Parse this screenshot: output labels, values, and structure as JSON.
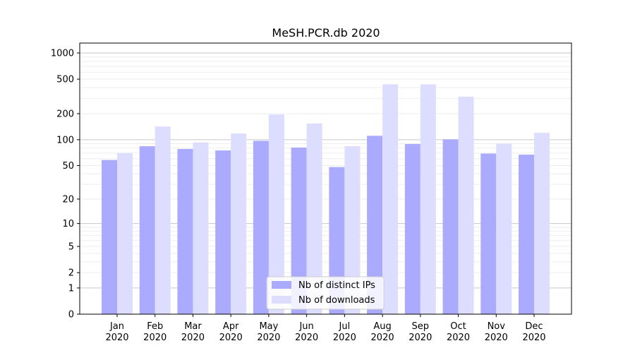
{
  "chart_data": {
    "type": "bar",
    "title": "MeSH.PCR.db 2020",
    "xlabel": "",
    "ylabel": "",
    "y_scale": "log1p",
    "ylim": [
      0,
      1300
    ],
    "grid": true,
    "legend_position": "bottom-center",
    "categories": [
      [
        "Jan",
        "2020"
      ],
      [
        "Feb",
        "2020"
      ],
      [
        "Mar",
        "2020"
      ],
      [
        "Apr",
        "2020"
      ],
      [
        "May",
        "2020"
      ],
      [
        "Jun",
        "2020"
      ],
      [
        "Jul",
        "2020"
      ],
      [
        "Aug",
        "2020"
      ],
      [
        "Sep",
        "2020"
      ],
      [
        "Oct",
        "2020"
      ],
      [
        "Nov",
        "2020"
      ],
      [
        "Dec",
        "2020"
      ]
    ],
    "y_ticks": [
      0,
      1,
      2,
      5,
      10,
      20,
      50,
      100,
      200,
      500,
      1000
    ],
    "series": [
      {
        "name": "Nb of distinct IPs",
        "color": "#aaaaff",
        "values": [
          58,
          84,
          78,
          75,
          97,
          81,
          48,
          111,
          89,
          101,
          69,
          67
        ]
      },
      {
        "name": "Nb of downloads",
        "color": "#ddddff",
        "values": [
          70,
          142,
          93,
          118,
          196,
          154,
          84,
          436,
          436,
          314,
          90,
          120
        ]
      }
    ]
  }
}
